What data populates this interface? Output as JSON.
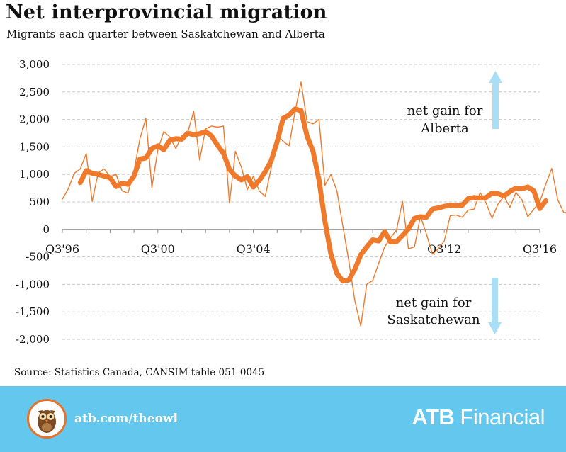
{
  "header": {
    "title": "Net interprovincial migration",
    "subtitle": "Migrants each quarter between Saskatchewan and Alberta"
  },
  "chart_data": {
    "type": "line",
    "title": "Net interprovincial migration",
    "subtitle": "Migrants each quarter between Saskatchewan and Alberta",
    "xlabel": "",
    "ylabel": "",
    "ylim": [
      -2000,
      3000
    ],
    "y_ticks": [
      "3,000",
      "2,500",
      "2,000",
      "1,500",
      "1,000",
      "500",
      "0",
      "-500",
      "-1,000",
      "-1,500",
      "-2,000"
    ],
    "x_tick_labels": [
      "Q3'96",
      "Q3'00",
      "Q3'04",
      "Q3'12",
      "Q3'16"
    ],
    "grid": true,
    "legend": "none",
    "series": [
      {
        "values": [
          550,
          740,
          1020,
          1100,
          1380,
          510,
          1030,
          1100,
          960,
          1000,
          700,
          660,
          1060,
          1650,
          2020,
          760,
          1450,
          1780,
          1680,
          1470,
          1700,
          1760,
          2150,
          1260,
          1830,
          1880,
          1860,
          1880,
          480,
          1420,
          1130,
          720,
          970,
          700,
          600,
          1120,
          1720,
          1600,
          1520,
          2150,
          2680,
          1960,
          1920,
          2000,
          800,
          1000,
          700,
          60,
          -570,
          -1290,
          -1760,
          -1000,
          -930,
          -620,
          -320,
          -150,
          -10,
          510,
          -350,
          -320,
          240,
          -80,
          -450,
          -350,
          -210,
          250,
          260,
          220,
          350,
          370,
          670,
          480,
          200,
          460,
          600,
          400,
          670,
          540,
          230,
          370,
          500,
          820,
          1110,
          540,
          310,
          300,
          570,
          1080,
          1380,
          250,
          300,
          920,
          370,
          160,
          800
        ],
        "color": "#f07a2c",
        "style": "thin"
      },
      {
        "values": [
          850,
          1070,
          1020,
          1000,
          970,
          940,
          780,
          840,
          820,
          970,
          1280,
          1300,
          1470,
          1520,
          1450,
          1620,
          1650,
          1640,
          1750,
          1720,
          1740,
          1780,
          1700,
          1530,
          1380,
          1090,
          970,
          900,
          960,
          770,
          890,
          1050,
          1250,
          1600,
          2020,
          2080,
          2190,
          2160,
          1700,
          1420,
          900,
          150,
          -450,
          -800,
          -940,
          -920,
          -730,
          -460,
          -320,
          -190,
          -210,
          -40,
          -230,
          -220,
          -110,
          10,
          200,
          230,
          220,
          370,
          390,
          420,
          440,
          430,
          440,
          560,
          580,
          570,
          580,
          660,
          650,
          610,
          690,
          750,
          740,
          770,
          700,
          380,
          520
        ],
        "color": "#f07a2c",
        "style": "thick"
      }
    ],
    "annotations": [
      {
        "text_lines": [
          "net gain for",
          "Alberta"
        ],
        "arrow": "up",
        "arrow_color": "#a9def4"
      },
      {
        "text_lines": [
          "net gain for",
          "Saskatchewan"
        ],
        "arrow": "down",
        "arrow_color": "#a9def4"
      }
    ]
  },
  "source": "Source: Statistics Canada, CANSIM table  051-0045",
  "footer": {
    "link": "atb.com/theowl",
    "brand_bold": "ATB",
    "brand_rest": " Financial",
    "logo_icon": "owl-icon",
    "background": "#63c7ee"
  }
}
